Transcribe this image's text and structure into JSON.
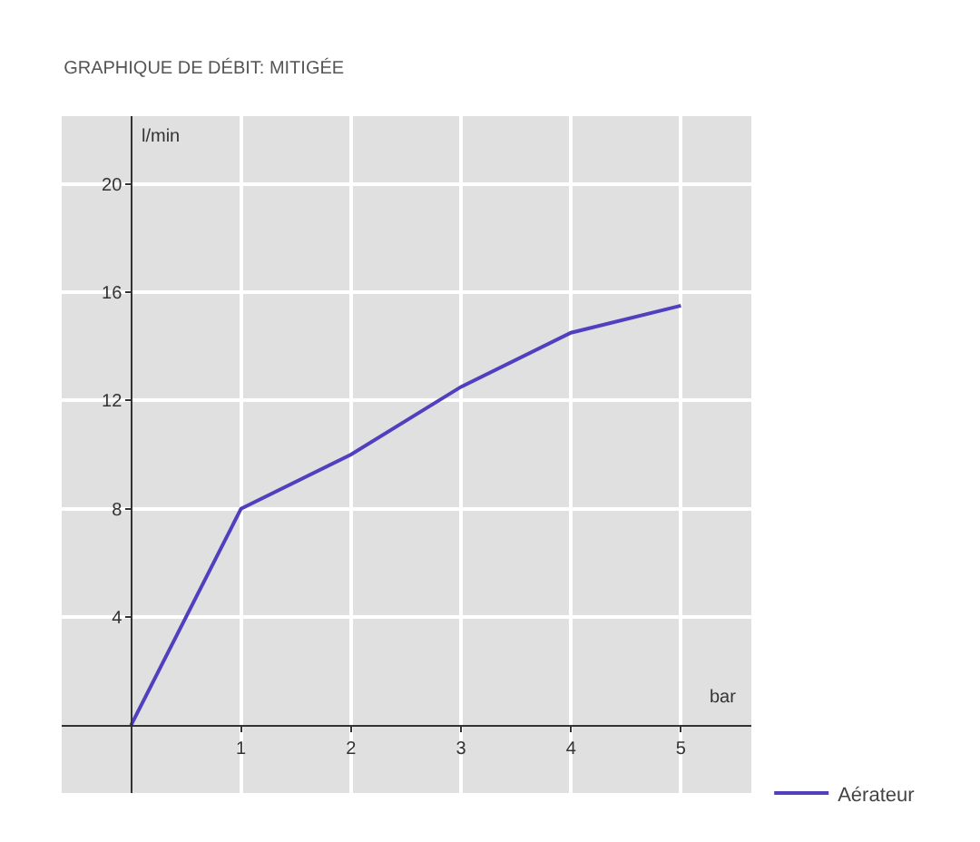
{
  "chart_data": {
    "type": "line",
    "title": "GRAPHIQUE DE DÉBIT: MITIGÉE",
    "xlabel": "bar",
    "ylabel": "l/min",
    "x": [
      0,
      1,
      2,
      3,
      4,
      5
    ],
    "series": [
      {
        "name": "Aérateur",
        "color": "#5040c0",
        "values": [
          0,
          8,
          10,
          12.5,
          14.5,
          15.5
        ]
      }
    ],
    "xlim": [
      -0.63,
      5.64
    ],
    "ylim": [
      -2.5,
      22.5
    ],
    "xticks": [
      1,
      2,
      3,
      4,
      5
    ],
    "yticks": [
      4,
      8,
      12,
      16,
      20
    ],
    "grid": true,
    "legend": "bottom right",
    "marker": "none",
    "line_style": "solid"
  }
}
